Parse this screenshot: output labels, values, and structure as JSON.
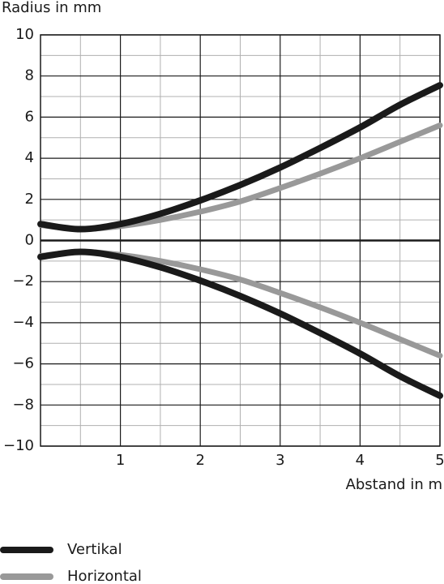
{
  "chart_data": {
    "type": "line",
    "ylabel": "Radius in mm",
    "xlabel": "Abstand in m",
    "x": [
      0,
      0.5,
      1,
      1.5,
      2,
      2.5,
      3,
      3.5,
      4,
      4.5,
      5
    ],
    "xlim": [
      0,
      5
    ],
    "xticks": [
      1,
      2,
      3,
      4,
      5
    ],
    "xminorticks": [
      0.5,
      1.5,
      2.5,
      3.5,
      4.5
    ],
    "ylim": [
      -10,
      10
    ],
    "yticks": [
      10,
      8,
      6,
      4,
      2,
      0,
      {
        "value": -2,
        "label": "−2"
      },
      {
        "value": -4,
        "label": "−4"
      },
      {
        "value": -6,
        "label": "−6"
      },
      {
        "value": -8,
        "label": "−8"
      },
      {
        "value": -10,
        "label": "−10"
      }
    ],
    "yminorticks": [
      9,
      7,
      5,
      3,
      1,
      -1,
      -3,
      -5,
      -7,
      -9
    ],
    "grid": true,
    "legend": "bottom-left",
    "series": [
      {
        "name": "Vertikal",
        "color": "#1a1a1a",
        "upper": [
          0.8,
          0.55,
          0.8,
          1.3,
          1.95,
          2.7,
          3.55,
          4.5,
          5.5,
          6.6,
          7.55
        ],
        "lower": [
          -0.8,
          -0.55,
          -0.8,
          -1.3,
          -1.95,
          -2.7,
          -3.55,
          -4.5,
          -5.5,
          -6.6,
          -7.55
        ]
      },
      {
        "name": "Horizontal",
        "color": "#999999",
        "upper": [
          0.75,
          0.55,
          0.7,
          1.0,
          1.4,
          1.9,
          2.55,
          3.25,
          4.0,
          4.8,
          5.6
        ],
        "lower": [
          -0.75,
          -0.55,
          -0.7,
          -1.0,
          -1.4,
          -1.9,
          -2.55,
          -3.25,
          -4.0,
          -4.8,
          -5.6
        ]
      }
    ]
  }
}
